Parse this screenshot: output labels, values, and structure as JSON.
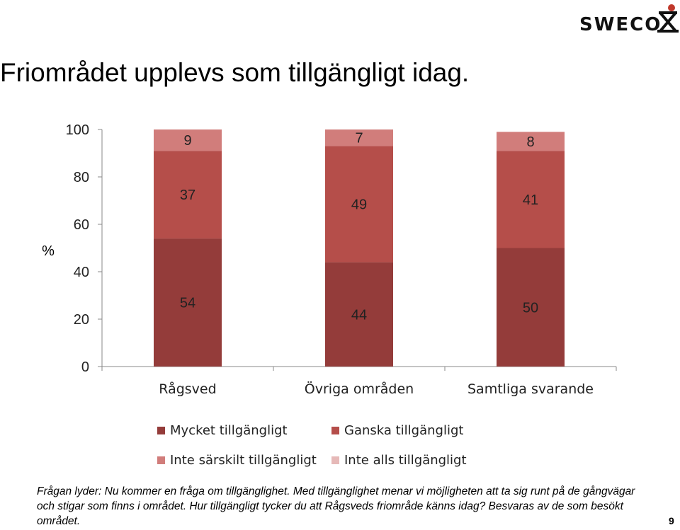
{
  "brand": {
    "logo_text": "SWECO",
    "logo_color": "#c0392b"
  },
  "title": "Friområdet upplevs som tillgängligt idag.",
  "chart_data": {
    "type": "bar",
    "stacked": true,
    "ylabel": "%",
    "ylim": [
      0,
      100
    ],
    "yticks": [
      "0",
      "20",
      "40",
      "60",
      "80",
      "100"
    ],
    "categories": [
      "Rågsved",
      "Övriga områden",
      "Samtliga svarande"
    ],
    "series": [
      {
        "name": "Mycket tillgängligt",
        "values": [
          54,
          44,
          50
        ],
        "color": "#943c3a"
      },
      {
        "name": "Ganska tillgängligt",
        "values": [
          37,
          49,
          41
        ],
        "color": "#b54e4a"
      },
      {
        "name": "Inte särskilt tillgängligt",
        "values": [
          9,
          7,
          8
        ],
        "color": "#d17d7b"
      },
      {
        "name": "Inte alls tillgängligt",
        "values": [
          0,
          0,
          0
        ],
        "color": "#e6b9b8"
      }
    ],
    "data_labels": [
      [
        "54",
        "44",
        "50"
      ],
      [
        "37",
        "49",
        "41"
      ],
      [
        "9",
        "7",
        "8"
      ]
    ],
    "legend_position": "bottom",
    "grid": false
  },
  "note": "Frågan lyder: Nu kommer en fråga om tillgänglighet. Med tillgänglighet menar vi möjligheten att ta sig runt på de gångvägar och stigar som finns i området. Hur tillgängligt tycker du att Rågsveds friområde känns idag? Besvaras av de som besökt området.",
  "page_number": "9"
}
